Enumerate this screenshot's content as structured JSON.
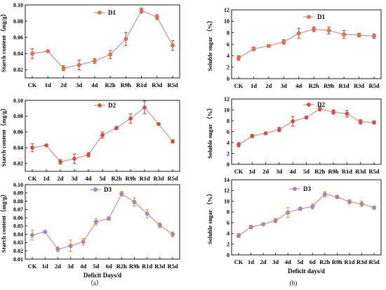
{
  "figure": {
    "sublabel_left": "（a）",
    "sublabel_right": "(b)"
  },
  "colors": {
    "line": "#c98a8a",
    "marker_d1": "#e8734e",
    "marker_d2": "#e04a46",
    "marker_d3": "#9b8ae6",
    "error_d1": "#d63a3a",
    "error_d2": "#d63a3a",
    "error_d3": "#d4a020"
  },
  "chart_data": [
    {
      "id": "starch-d1",
      "type": "line",
      "legend": "D1",
      "ylabel": "Starch content（mg/g）",
      "xlabel": "",
      "ylim": [
        0.01,
        0.1
      ],
      "yticks": [
        "0.02",
        "0.04",
        "0.06",
        "0.08",
        "0.10"
      ],
      "yticks_v": [
        0.02,
        0.04,
        0.06,
        0.08,
        0.1
      ],
      "categories": [
        "CK",
        "1d",
        "2d",
        "3d",
        "4d",
        "R2h",
        "R9h",
        "R1d",
        "R3d",
        "R5d"
      ],
      "values": [
        0.04,
        0.043,
        0.022,
        0.026,
        0.031,
        0.039,
        0.058,
        0.093,
        0.085,
        0.05
      ],
      "errors": [
        0.006,
        0.001,
        0.003,
        0.006,
        0.003,
        0.005,
        0.008,
        0.003,
        0.003,
        0.006
      ]
    },
    {
      "id": "starch-d2",
      "type": "line",
      "legend": "D2",
      "ylabel": "Starch content（mg/g）",
      "xlabel": "",
      "ylim": [
        0.01,
        0.1
      ],
      "yticks": [
        "0.02",
        "0.04",
        "0.06",
        "0.08",
        "0.10"
      ],
      "yticks_v": [
        0.02,
        0.04,
        0.06,
        0.08,
        0.1
      ],
      "categories": [
        "CK",
        "1d",
        "2d",
        "3d",
        "4d",
        "5d",
        "R2h",
        "R9h",
        "R1d",
        "R3d",
        "R5d"
      ],
      "values": [
        0.04,
        0.043,
        0.022,
        0.026,
        0.031,
        0.056,
        0.065,
        0.077,
        0.091,
        0.07,
        0.048
      ],
      "errors": [
        0.005,
        0.001,
        0.003,
        0.006,
        0.003,
        0.004,
        0.002,
        0.006,
        0.008,
        0.001,
        0.002
      ]
    },
    {
      "id": "starch-d3",
      "type": "line",
      "legend": "D3",
      "ylabel": "Starch content（mg/g）",
      "xlabel": "Deficit Days/d",
      "ylim": [
        0.01,
        0.1
      ],
      "yticks": [
        "0.01",
        "0.02",
        "0.03",
        "0.04",
        "0.05",
        "0.06",
        "0.07",
        "0.08",
        "0.09",
        "0.10"
      ],
      "yticks_v": [
        0.01,
        0.02,
        0.03,
        0.04,
        0.05,
        0.06,
        0.07,
        0.08,
        0.09,
        0.1
      ],
      "categories": [
        "CK",
        "1d",
        "2d",
        "3d",
        "4d",
        "5d",
        "6d",
        "R2h",
        "R9h",
        "R1d",
        "R3d",
        "R5d"
      ],
      "values": [
        0.039,
        0.043,
        0.022,
        0.026,
        0.031,
        0.055,
        0.059,
        0.089,
        0.079,
        0.065,
        0.051,
        0.04
      ],
      "errors": [
        0.006,
        0.001,
        0.003,
        0.007,
        0.004,
        0.004,
        0.002,
        0.003,
        0.005,
        0.005,
        0.003,
        0.003
      ]
    },
    {
      "id": "sugar-d1",
      "type": "line",
      "legend": "D1",
      "ylabel": "Soluble sugar （%）",
      "xlabel": "",
      "ylim": [
        0,
        12
      ],
      "yticks": [
        "0",
        "2",
        "4",
        "6",
        "8",
        "10",
        "12"
      ],
      "yticks_v": [
        0,
        2,
        4,
        6,
        8,
        10,
        12
      ],
      "categories": [
        "CK",
        "1d",
        "2d",
        "3d",
        "4d",
        "R2h",
        "R9h",
        "R1d",
        "R3d",
        "R5d"
      ],
      "values": [
        3.6,
        5.2,
        5.7,
        6.4,
        7.9,
        8.6,
        8.4,
        7.7,
        7.6,
        7.4
      ],
      "errors": [
        0.4,
        0.3,
        0.2,
        0.4,
        0.9,
        0.4,
        0.6,
        0.7,
        0.3,
        0.4
      ]
    },
    {
      "id": "sugar-d2",
      "type": "line",
      "legend": "D2",
      "ylabel": "Soluble sugar （%）",
      "xlabel": "",
      "ylim": [
        0,
        12
      ],
      "yticks": [
        "0",
        "2",
        "4",
        "6",
        "8",
        "10",
        "12"
      ],
      "yticks_v": [
        0,
        2,
        4,
        6,
        8,
        10,
        12
      ],
      "categories": [
        "CK",
        "1d",
        "2d",
        "3d",
        "4d",
        "5d",
        "R2h",
        "R9h",
        "R1d",
        "R3d",
        "R5d"
      ],
      "values": [
        3.6,
        5.2,
        5.7,
        6.4,
        7.9,
        8.6,
        10.2,
        9.6,
        9.3,
        7.8,
        7.7
      ],
      "errors": [
        0.4,
        0.3,
        0.2,
        0.4,
        0.9,
        0.2,
        0.4,
        0.4,
        0.6,
        0.4,
        0.3
      ]
    },
    {
      "id": "sugar-d3",
      "type": "line",
      "legend": "D3",
      "ylabel": "Soluble sugar （%）",
      "xlabel": "Deficit days/d",
      "ylim": [
        0,
        14
      ],
      "yticks": [
        "0",
        "2",
        "4",
        "6",
        "8",
        "10",
        "12",
        "14"
      ],
      "yticks_v": [
        0,
        2,
        4,
        6,
        8,
        10,
        12,
        14
      ],
      "categories": [
        "CK",
        "1d",
        "2d",
        "3d",
        "4d",
        "5d",
        "6d",
        "R2h",
        "R9h",
        "R1d",
        "R3d",
        "R5d"
      ],
      "values": [
        3.6,
        5.2,
        5.7,
        6.4,
        7.9,
        8.6,
        9.0,
        11.3,
        10.8,
        9.9,
        9.5,
        8.8
      ],
      "errors": [
        0.4,
        0.3,
        0.2,
        0.4,
        0.9,
        0.3,
        0.5,
        0.5,
        0.3,
        0.4,
        0.5,
        0.3
      ]
    }
  ]
}
